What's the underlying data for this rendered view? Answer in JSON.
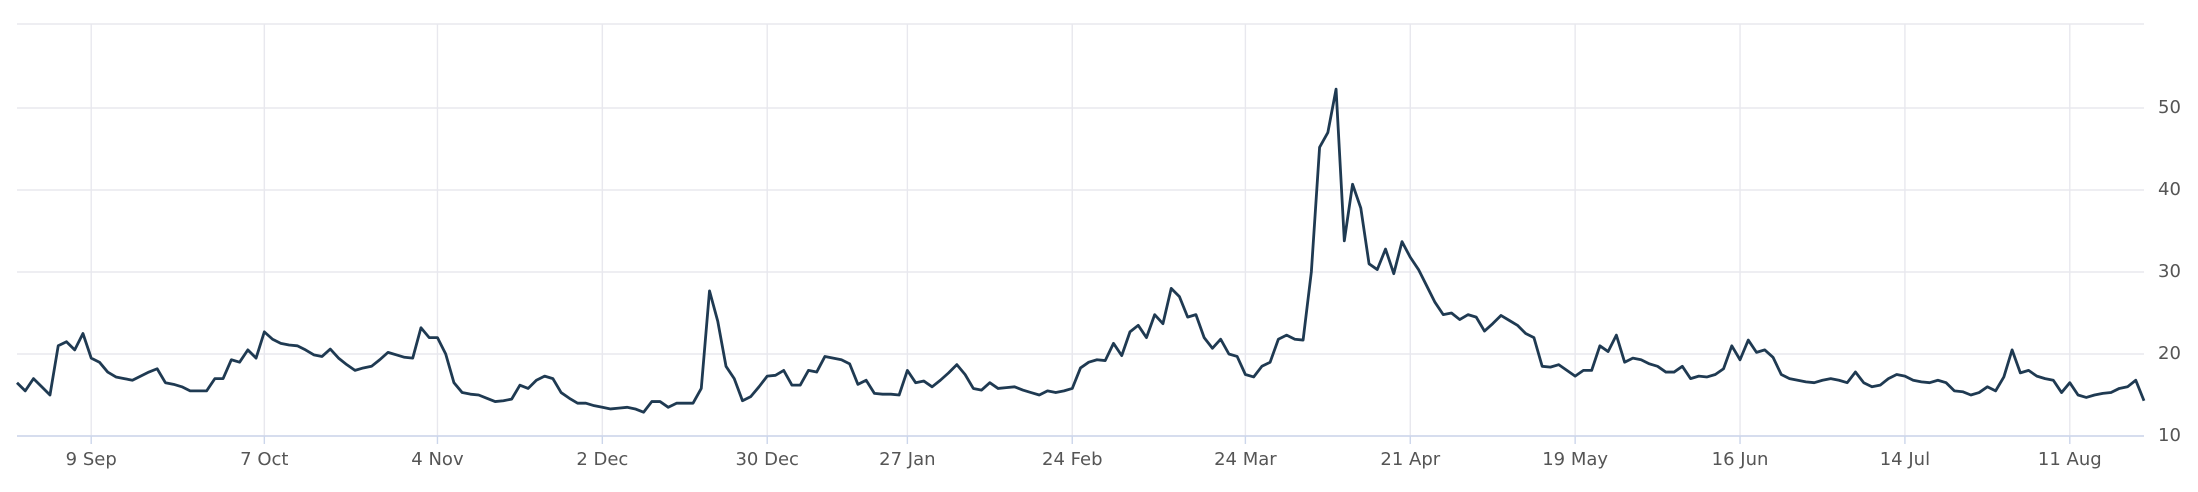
{
  "chart_data": {
    "type": "line",
    "color": "#1f3a52",
    "grid": true,
    "ylim": [
      10,
      60
    ],
    "yticks": [
      10,
      20,
      30,
      40,
      50
    ],
    "categories": [
      null,
      null,
      null,
      null,
      null,
      null,
      null,
      null,
      null,
      "9 Sep",
      null,
      null,
      null,
      null,
      null,
      null,
      null,
      null,
      null,
      null,
      null,
      null,
      null,
      null,
      null,
      null,
      null,
      null,
      null,
      null,
      "7 Oct",
      null,
      null,
      null,
      null,
      null,
      null,
      null,
      null,
      null,
      null,
      null,
      null,
      null,
      null,
      null,
      null,
      null,
      null,
      null,
      null,
      "4 Nov",
      null,
      null,
      null,
      null,
      null,
      null,
      null,
      null,
      null,
      null,
      null,
      null,
      null,
      null,
      null,
      null,
      null,
      null,
      null,
      "2 Dec",
      null,
      null,
      null,
      null,
      null,
      null,
      null,
      null,
      null,
      null,
      null,
      null,
      null,
      null,
      null,
      null,
      null,
      null,
      null,
      "30 Dec",
      null,
      null,
      null,
      null,
      null,
      null,
      null,
      null,
      null,
      null,
      null,
      null,
      null,
      null,
      null,
      null,
      "27 Jan",
      null,
      null,
      null,
      null,
      null,
      null,
      null,
      null,
      null,
      null,
      null,
      null,
      null,
      null,
      null,
      null,
      null,
      null,
      null,
      "24 Feb",
      null,
      null,
      null,
      null,
      null,
      null,
      null,
      null,
      null,
      null,
      null,
      null,
      null,
      null,
      null,
      null,
      null,
      null,
      null,
      null,
      "24 Mar",
      null,
      null,
      null,
      null,
      null,
      null,
      null,
      null,
      null,
      null,
      null,
      null,
      null,
      null,
      null,
      null,
      null,
      null,
      null,
      "21 Apr",
      null,
      null,
      null,
      null,
      null,
      null,
      null,
      null,
      null,
      null,
      null,
      null,
      null,
      null,
      null,
      null,
      null,
      null,
      null,
      "19 May",
      null,
      null,
      null,
      null,
      null,
      null,
      null,
      null,
      null,
      null,
      null,
      null,
      null,
      null,
      null,
      null,
      null,
      null,
      null,
      "16 Jun",
      null,
      null,
      null,
      null,
      null,
      null,
      null,
      null,
      null,
      null,
      null,
      null,
      null,
      null,
      null,
      null,
      null,
      null,
      null,
      "14 Jul",
      null,
      null,
      null,
      null,
      null,
      null,
      null,
      null,
      null,
      null,
      null,
      null,
      null,
      null,
      null,
      null,
      null,
      null,
      null,
      "11 Aug",
      null,
      null,
      null,
      null,
      null,
      null,
      null,
      null,
      null
    ],
    "values": [
      16.5,
      15.5,
      17,
      16,
      15,
      21,
      21.5,
      20.5,
      22.5,
      19.5,
      19,
      17.8,
      17.2,
      17,
      16.8,
      17.3,
      17.8,
      18.2,
      16.5,
      16.3,
      16,
      15.5,
      15.5,
      15.5,
      17,
      17,
      19.3,
      19,
      20.5,
      19.5,
      22.7,
      21.8,
      21.3,
      21.1,
      21,
      20.5,
      19.9,
      19.7,
      20.6,
      19.5,
      18.7,
      18,
      18.3,
      18.5,
      19.3,
      20.2,
      19.9,
      19.6,
      19.5,
      23.2,
      22,
      22,
      20,
      16.5,
      15.3,
      15.1,
      15,
      14.6,
      14.2,
      14.3,
      14.5,
      16.2,
      15.8,
      16.8,
      17.3,
      17,
      15.3,
      14.6,
      14,
      14,
      13.7,
      13.5,
      13.3,
      13.4,
      13.5,
      13.3,
      12.9,
      14.2,
      14.2,
      13.5,
      14,
      14,
      14,
      15.8,
      27.7,
      24,
      18.5,
      17,
      14.3,
      14.8,
      16,
      17.3,
      17.4,
      18,
      16.2,
      16.2,
      18,
      17.8,
      19.7,
      19.5,
      19.3,
      18.8,
      16.3,
      16.8,
      15.2,
      15.1,
      15.1,
      15,
      18,
      16.5,
      16.7,
      16,
      16.8,
      17.7,
      18.7,
      17.5,
      15.8,
      15.6,
      16.5,
      15.8,
      15.9,
      16,
      15.6,
      15.3,
      15,
      15.5,
      15.3,
      15.5,
      15.8,
      18.3,
      19,
      19.3,
      19.2,
      21.3,
      19.8,
      22.7,
      23.5,
      22,
      24.8,
      23.7,
      28,
      27,
      24.5,
      24.8,
      22,
      20.7,
      21.8,
      20,
      19.7,
      17.5,
      17.2,
      18.5,
      19,
      21.8,
      22.3,
      21.8,
      21.7,
      30,
      45.2,
      47,
      52.3,
      33.8,
      40.7,
      37.8,
      31,
      30.3,
      32.8,
      29.8,
      33.7,
      31.8,
      30.3,
      28.3,
      26.3,
      24.8,
      25,
      24.2,
      24.8,
      24.5,
      22.8,
      23.7,
      24.7,
      24.1,
      23.5,
      22.5,
      22,
      18.5,
      18.4,
      18.7,
      18,
      17.3,
      18,
      18,
      21,
      20.3,
      22.3,
      19,
      19.5,
      19.3,
      18.8,
      18.5,
      17.8,
      17.8,
      18.5,
      17,
      17.3,
      17.2,
      17.5,
      18.2,
      21,
      19.3,
      21.7,
      20.2,
      20.5,
      19.6,
      17.5,
      17,
      16.8,
      16.6,
      16.5,
      16.8,
      17,
      16.8,
      16.5,
      17.8,
      16.5,
      16,
      16.2,
      17,
      17.5,
      17.3,
      16.8,
      16.6,
      16.5,
      16.8,
      16.5,
      15.5,
      15.4,
      15,
      15.3,
      16,
      15.5,
      17.2,
      20.5,
      17.7,
      18,
      17.3,
      17,
      16.8,
      15.3,
      16.5,
      15,
      14.7,
      15,
      15.2,
      15.3,
      15.8,
      16,
      16.8,
      14.3
    ]
  }
}
